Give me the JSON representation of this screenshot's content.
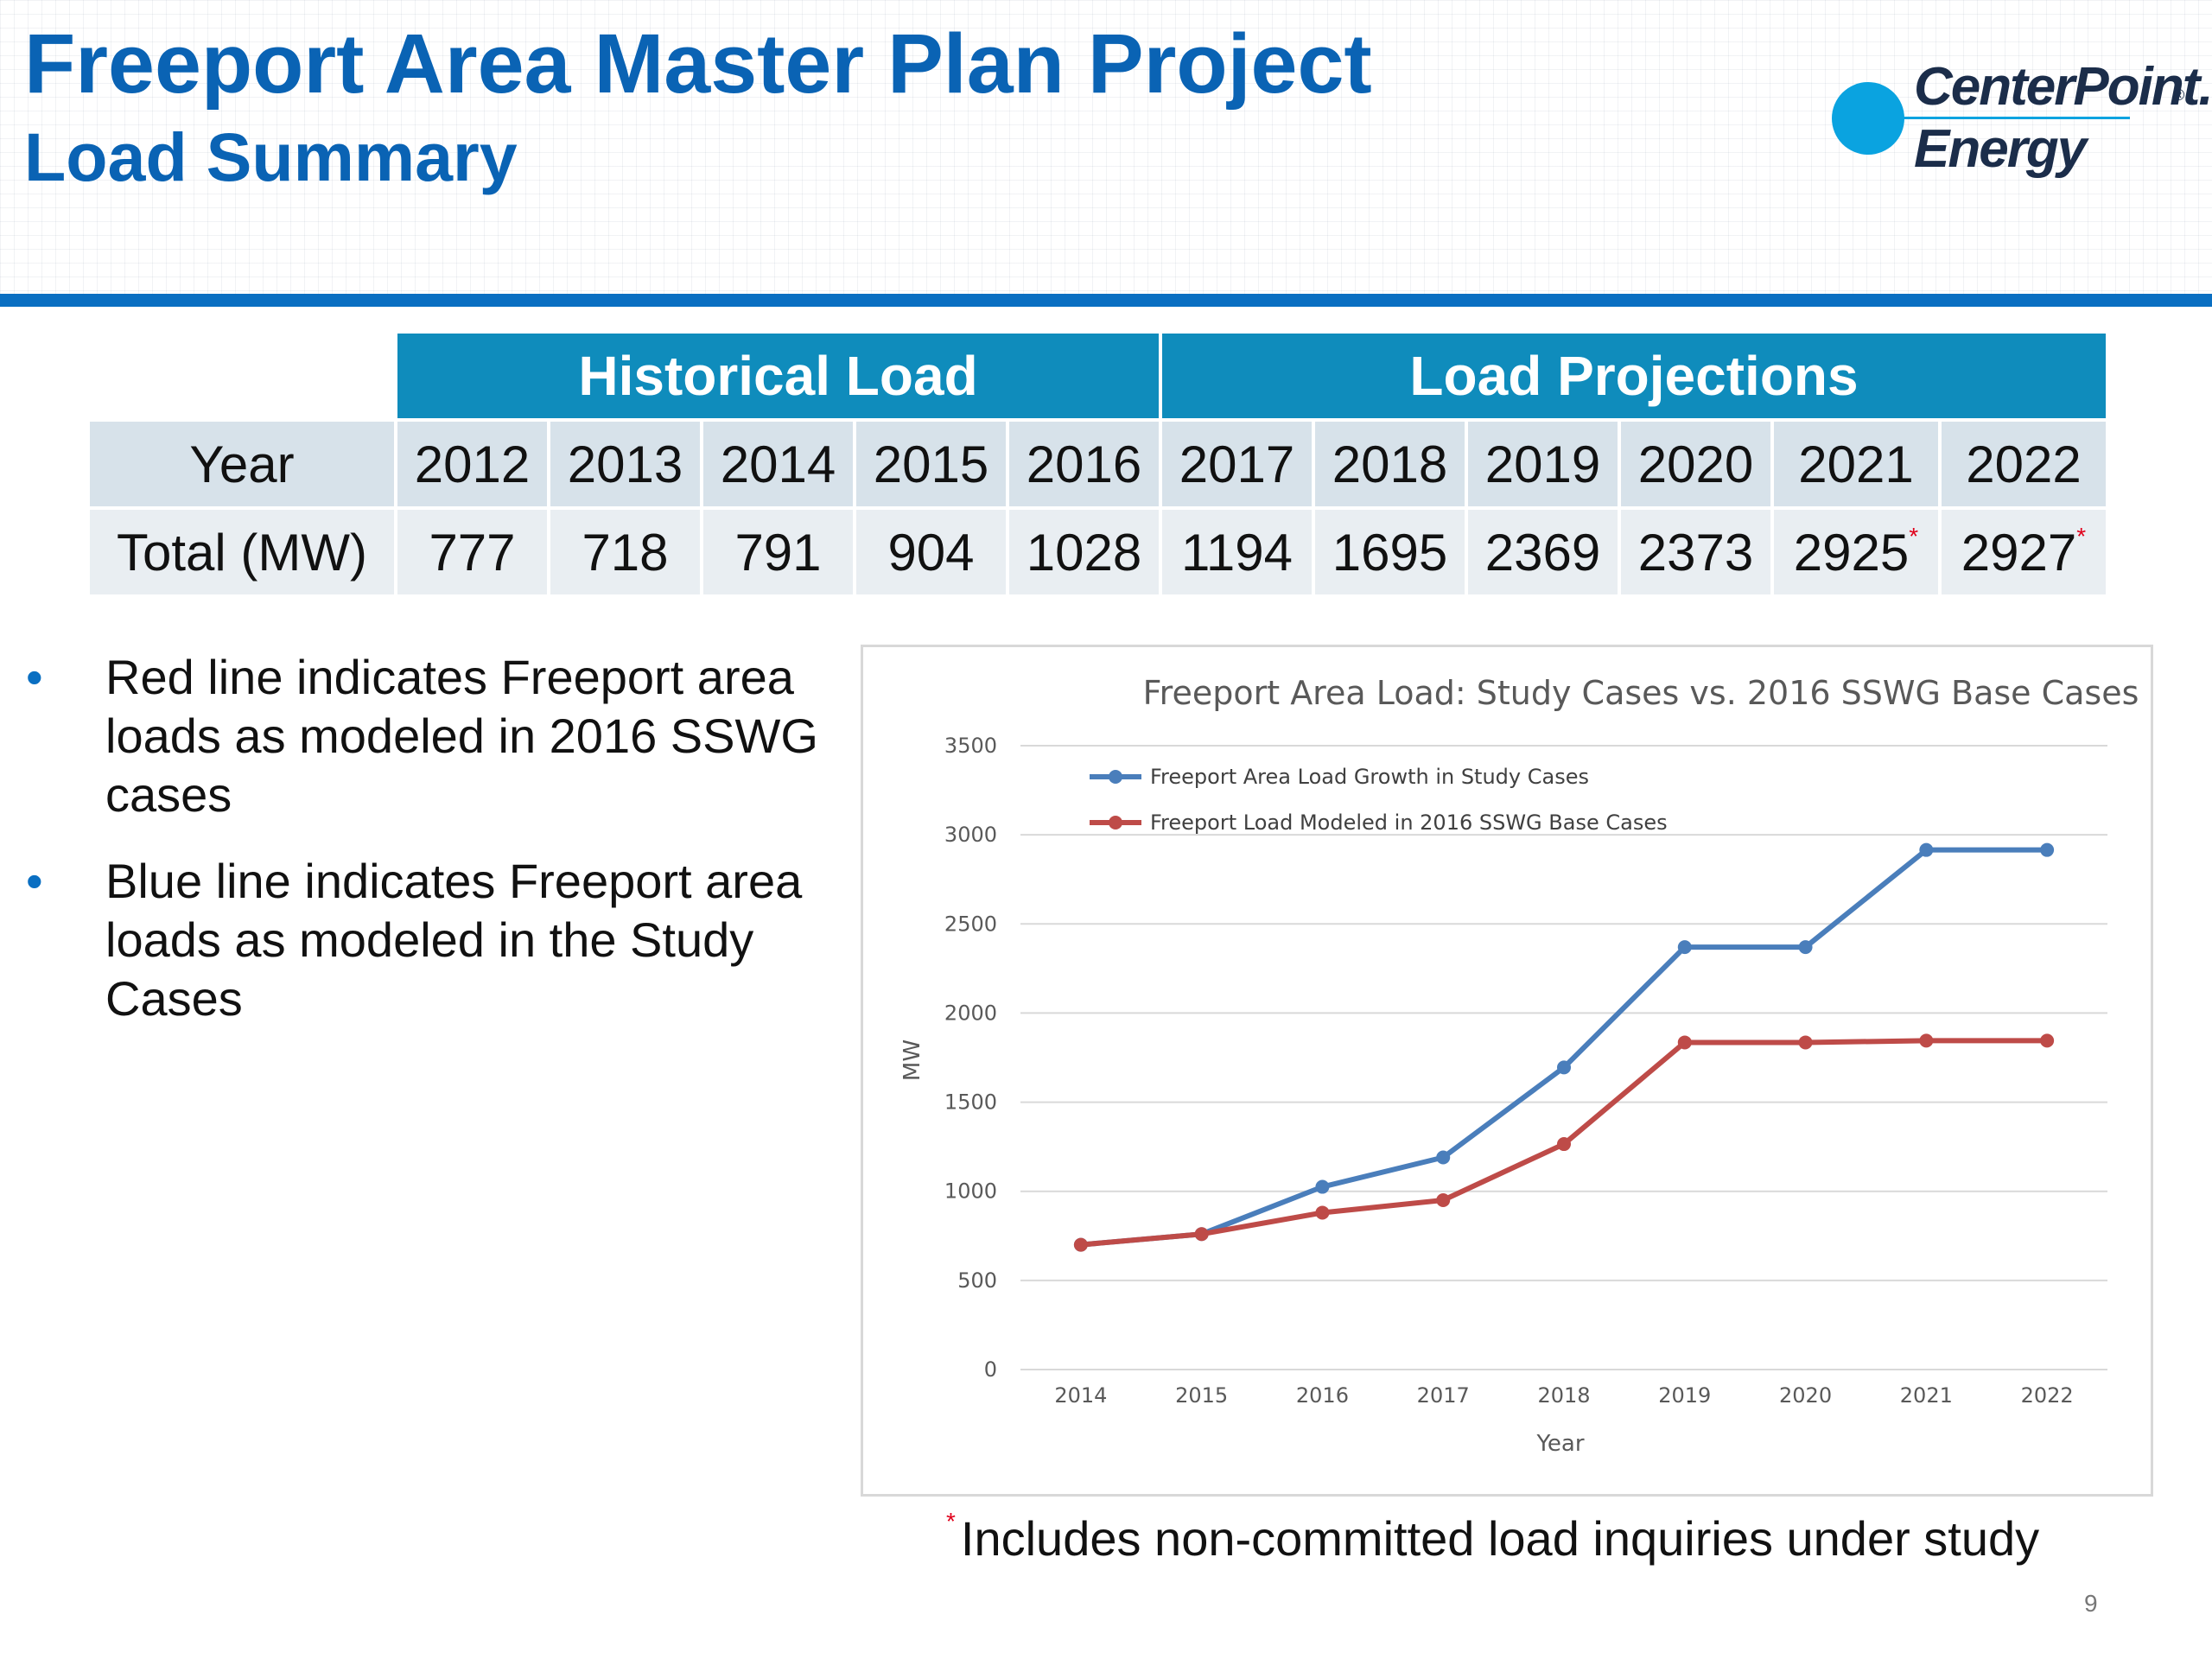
{
  "header": {
    "title": "Freeport Area Master Plan Project",
    "subtitle": "Load Summary",
    "logo_line1": "CenterPoint.",
    "logo_line2": "Energy",
    "logo_mark": "®"
  },
  "table": {
    "group_historical": "Historical Load",
    "group_projections": "Load Projections",
    "year_label": "Year",
    "total_label": "Total (MW)",
    "years": [
      "2012",
      "2013",
      "2014",
      "2015",
      "2016",
      "2017",
      "2018",
      "2019",
      "2020",
      "2021",
      "2022"
    ],
    "totals": [
      "777",
      "718",
      "791",
      "904",
      "1028",
      "1194",
      "1695",
      "2369",
      "2373",
      "2925",
      "2927"
    ],
    "star": "*"
  },
  "bullets": [
    "Red line indicates Freeport area loads as modeled in 2016 SSWG cases",
    "Blue line indicates Freeport area loads as modeled in the Study Cases"
  ],
  "bullet_glyph": "•",
  "footnote": {
    "star": "*",
    "text": "Includes non-committed load inquiries under study"
  },
  "page_number": "9",
  "colors": {
    "title": "#0a63b4",
    "header_bar": "#0a6fc2",
    "table_header": "#0f8cbc",
    "blue_series": "#4a7ebb",
    "red_series": "#be4b48"
  },
  "chart_data": {
    "type": "line",
    "title": "Freeport Area Load: Study Cases vs. 2016 SSWG Base Cases",
    "xlabel": "Year",
    "ylabel": "MW",
    "categories": [
      "2014",
      "2015",
      "2016",
      "2017",
      "2018",
      "2019",
      "2020",
      "2021",
      "2022"
    ],
    "ylim": [
      0,
      3500
    ],
    "yticks": [
      "0",
      "500",
      "1000",
      "1500",
      "2000",
      "2500",
      "3000",
      "3500"
    ],
    "grid": true,
    "legend": "top-left",
    "series": [
      {
        "name": "Freeport Area Load Growth in Study Cases",
        "color": "#4a7ebb",
        "values": [
          700,
          760,
          1025,
          1190,
          1695,
          2370,
          2370,
          2915,
          2915
        ]
      },
      {
        "name": "Freeport Load Modeled in 2016 SSWG Base Cases",
        "color": "#be4b48",
        "values": [
          700,
          760,
          880,
          950,
          1265,
          1835,
          1835,
          1845,
          1845
        ]
      }
    ]
  }
}
